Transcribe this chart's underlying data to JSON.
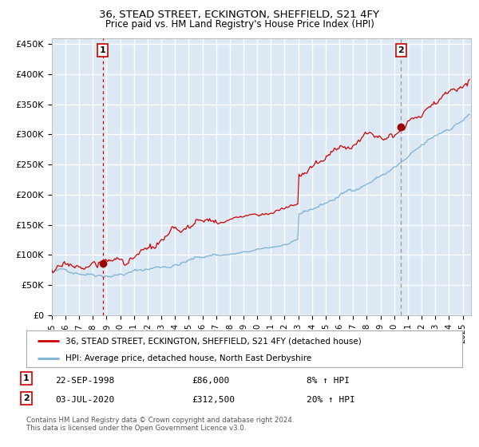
{
  "title": "36, STEAD STREET, ECKINGTON, SHEFFIELD, S21 4FY",
  "subtitle": "Price paid vs. HM Land Registry's House Price Index (HPI)",
  "ylim": [
    0,
    460000
  ],
  "xlim_start": 1995.0,
  "xlim_end": 2025.6,
  "plot_bg_color": "#dce9f5",
  "grid_color": "#ffffff",
  "hpi_line_color": "#7ab0d4",
  "price_line_color": "#cc0000",
  "vline1_color": "#cc0000",
  "vline2_color": "#999999",
  "marker_color": "#990000",
  "sale1_date": 1998.73,
  "sale1_price": 86000,
  "sale2_date": 2020.5,
  "sale2_price": 312500,
  "legend1": "36, STEAD STREET, ECKINGTON, SHEFFIELD, S21 4FY (detached house)",
  "legend2": "HPI: Average price, detached house, North East Derbyshire",
  "note1_date": "22-SEP-1998",
  "note1_price": "£86,000",
  "note1_hpi": "8% ↑ HPI",
  "note2_date": "03-JUL-2020",
  "note2_price": "£312,500",
  "note2_hpi": "20% ↑ HPI",
  "footer": "Contains HM Land Registry data © Crown copyright and database right 2024.\nThis data is licensed under the Open Government Licence v3.0.",
  "yticks": [
    0,
    50000,
    100000,
    150000,
    200000,
    250000,
    300000,
    350000,
    400000,
    450000
  ],
  "ytick_labels": [
    "£0",
    "£50K",
    "£100K",
    "£150K",
    "£200K",
    "£250K",
    "£300K",
    "£350K",
    "£400K",
    "£450K"
  ],
  "xtick_years": [
    1995,
    1996,
    1997,
    1998,
    1999,
    2000,
    2001,
    2002,
    2003,
    2004,
    2005,
    2006,
    2007,
    2008,
    2009,
    2010,
    2011,
    2012,
    2013,
    2014,
    2015,
    2016,
    2017,
    2018,
    2019,
    2020,
    2021,
    2022,
    2023,
    2024,
    2025
  ]
}
